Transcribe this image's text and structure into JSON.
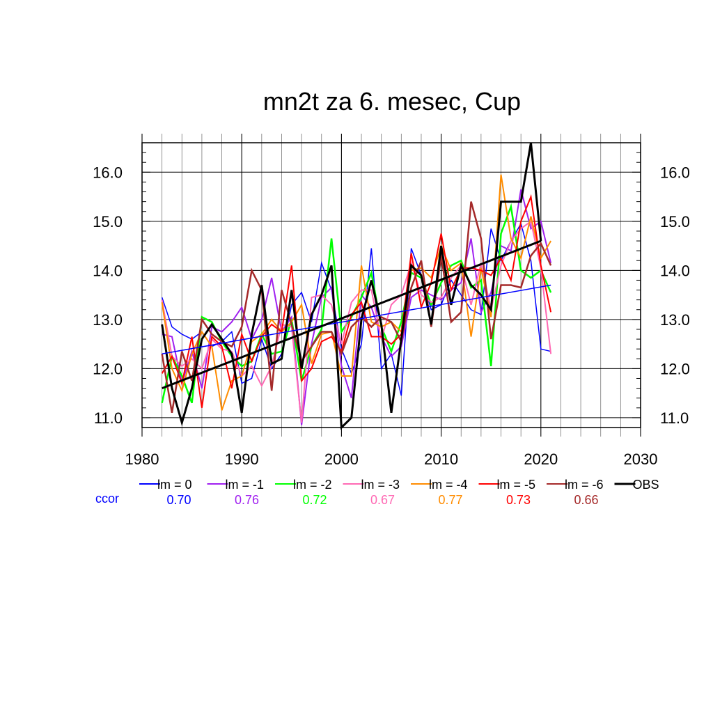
{
  "chart_data": {
    "type": "line",
    "title": "mn2t za 6. mesec, Cup",
    "xlim": [
      1980,
      2030
    ],
    "ylim": [
      10.8,
      16.6
    ],
    "x_ticks": [
      "1980",
      "1990",
      "2000",
      "2010",
      "2020",
      "2030"
    ],
    "y_ticks": [
      "11.0",
      "12.0",
      "13.0",
      "14.0",
      "15.0",
      "16.0"
    ],
    "grid": true,
    "years": [
      1982,
      1983,
      1984,
      1985,
      1986,
      1987,
      1988,
      1989,
      1990,
      1991,
      1992,
      1993,
      1994,
      1995,
      1996,
      1997,
      1998,
      1999,
      2000,
      2001,
      2002,
      2003,
      2004,
      2005,
      2006,
      2007,
      2008,
      2009,
      2010,
      2011,
      2012,
      2013,
      2014,
      2015,
      2016,
      2017,
      2018,
      2019,
      2020,
      2021
    ],
    "series": [
      {
        "name": "lm = 0",
        "color": "#0000ff",
        "width": 1.5,
        "values": [
          13.45,
          12.85,
          12.7,
          12.6,
          12.75,
          12.45,
          12.55,
          12.75,
          11.7,
          11.8,
          12.6,
          12.0,
          12.3,
          13.3,
          13.55,
          12.95,
          14.15,
          13.6,
          12.4,
          11.9,
          12.5,
          14.45,
          12.0,
          12.3,
          11.45,
          14.45,
          13.9,
          13.2,
          13.3,
          13.8,
          13.5,
          13.2,
          13.1,
          14.85,
          14.2,
          14.6,
          14.95,
          14.2,
          12.4,
          12.35
        ]
      },
      {
        "name": "lm = -1",
        "color": "#a020f0",
        "width": 2,
        "values": [
          12.7,
          12.65,
          11.7,
          12.35,
          11.6,
          12.85,
          12.75,
          12.95,
          13.25,
          12.6,
          13.0,
          13.85,
          12.75,
          13.05,
          10.85,
          12.5,
          13.45,
          13.65,
          12.05,
          11.4,
          13.5,
          13.25,
          12.65,
          12.25,
          12.45,
          13.45,
          13.6,
          13.5,
          13.4,
          13.6,
          13.75,
          14.65,
          13.15,
          13.55,
          14.5,
          14.4,
          15.65,
          14.85,
          15.0,
          14.15
        ]
      },
      {
        "name": "lm = -2",
        "color": "#00ff00",
        "width": 2.5,
        "values": [
          11.3,
          12.25,
          11.85,
          11.3,
          13.05,
          12.95,
          12.55,
          12.25,
          12.05,
          12.15,
          12.7,
          12.3,
          12.35,
          13.0,
          11.75,
          12.45,
          12.8,
          14.65,
          12.75,
          13.05,
          13.45,
          13.95,
          12.85,
          12.35,
          12.95,
          13.95,
          13.85,
          13.3,
          13.75,
          14.1,
          14.2,
          13.65,
          13.8,
          12.05,
          14.75,
          15.3,
          14.0,
          13.85,
          14.0,
          13.55
        ]
      },
      {
        "name": "lm = -3",
        "color": "#ff69b4",
        "width": 2,
        "values": [
          13.4,
          12.25,
          12.05,
          12.2,
          12.0,
          12.6,
          12.4,
          12.35,
          11.85,
          12.05,
          11.65,
          12.05,
          12.9,
          12.85,
          10.9,
          13.45,
          13.5,
          13.3,
          12.5,
          13.35,
          13.6,
          13.6,
          12.6,
          13.3,
          13.5,
          14.15,
          13.5,
          13.35,
          13.45,
          13.85,
          14.1,
          13.3,
          14.15,
          13.2,
          14.1,
          14.6,
          14.85,
          15.0,
          14.05,
          12.3
        ]
      },
      {
        "name": "lm = -4",
        "color": "#ff8c00",
        "width": 2,
        "values": [
          13.35,
          12.0,
          11.55,
          12.3,
          12.75,
          12.45,
          11.15,
          11.75,
          11.85,
          12.55,
          12.7,
          13.0,
          12.75,
          12.95,
          13.3,
          12.1,
          12.7,
          12.75,
          11.85,
          11.85,
          14.1,
          12.95,
          12.85,
          12.95,
          12.75,
          14.0,
          14.05,
          13.85,
          14.5,
          14.0,
          14.15,
          12.65,
          14.05,
          13.05,
          15.95,
          14.65,
          14.25,
          15.1,
          14.25,
          14.6
        ]
      },
      {
        "name": "lm = -5",
        "color": "#ff0000",
        "width": 2,
        "values": [
          11.9,
          12.25,
          11.7,
          12.65,
          11.2,
          12.65,
          12.45,
          11.6,
          12.7,
          12.15,
          12.65,
          12.9,
          12.75,
          14.1,
          11.75,
          12.0,
          12.55,
          12.65,
          12.35,
          13.1,
          13.35,
          12.65,
          12.65,
          12.5,
          12.7,
          14.35,
          13.25,
          13.75,
          14.75,
          13.6,
          14.05,
          14.05,
          14.0,
          13.9,
          14.25,
          13.8,
          15.0,
          15.5,
          14.1,
          13.15
        ]
      },
      {
        "name": "lm = -6",
        "color": "#a52a2a",
        "width": 2.5,
        "values": [
          12.3,
          11.1,
          12.35,
          11.75,
          13.0,
          12.7,
          12.55,
          12.45,
          12.85,
          14.0,
          13.6,
          11.55,
          13.6,
          12.9,
          12.15,
          12.45,
          12.75,
          12.75,
          12.3,
          12.85,
          13.05,
          12.85,
          13.05,
          12.95,
          12.55,
          13.65,
          14.2,
          12.85,
          14.3,
          12.95,
          13.15,
          15.4,
          14.65,
          12.6,
          13.7,
          13.7,
          13.65,
          14.3,
          14.55,
          14.1
        ]
      },
      {
        "name": "OBS",
        "color": "#000000",
        "width": 3,
        "values": [
          12.9,
          11.6,
          10.9,
          11.6,
          12.6,
          12.9,
          12.6,
          12.3,
          11.1,
          12.7,
          13.7,
          12.1,
          12.2,
          13.6,
          12.0,
          13.1,
          13.5,
          14.1,
          10.8,
          11.0,
          13.0,
          13.8,
          12.9,
          11.1,
          12.6,
          14.1,
          13.9,
          12.9,
          14.5,
          13.3,
          14.1,
          13.7,
          13.5,
          13.2,
          15.4,
          15.4,
          15.4,
          16.6,
          14.6
        ]
      }
    ],
    "trend_lines": [
      {
        "name": "lm = 0 trend",
        "color": "#0000ff",
        "width": 1.5,
        "x": [
          1982,
          2021
        ],
        "y": [
          12.3,
          13.7
        ]
      },
      {
        "name": "OBS trend",
        "color": "#000000",
        "width": 3,
        "x": [
          1982,
          2020
        ],
        "y": [
          11.6,
          14.6
        ]
      }
    ],
    "legend": {
      "placement": "bottom",
      "ccor_label": "ccor",
      "ccor_label_color": "#0000ff",
      "entries": [
        {
          "label": "lm = 0",
          "color": "#0000ff",
          "ccor": "0.70"
        },
        {
          "label": "lm = -1",
          "color": "#a020f0",
          "ccor": "0.76"
        },
        {
          "label": "lm = -2",
          "color": "#00ff00",
          "ccor": "0.72"
        },
        {
          "label": "lm = -3",
          "color": "#ff69b4",
          "ccor": "0.67"
        },
        {
          "label": "lm = -4",
          "color": "#ff8c00",
          "ccor": "0.77"
        },
        {
          "label": "lm = -5",
          "color": "#ff0000",
          "ccor": "0.73"
        },
        {
          "label": "lm = -6",
          "color": "#a52a2a",
          "ccor": "0.66"
        },
        {
          "label": "OBS",
          "color": "#000000",
          "ccor": ""
        }
      ]
    }
  }
}
